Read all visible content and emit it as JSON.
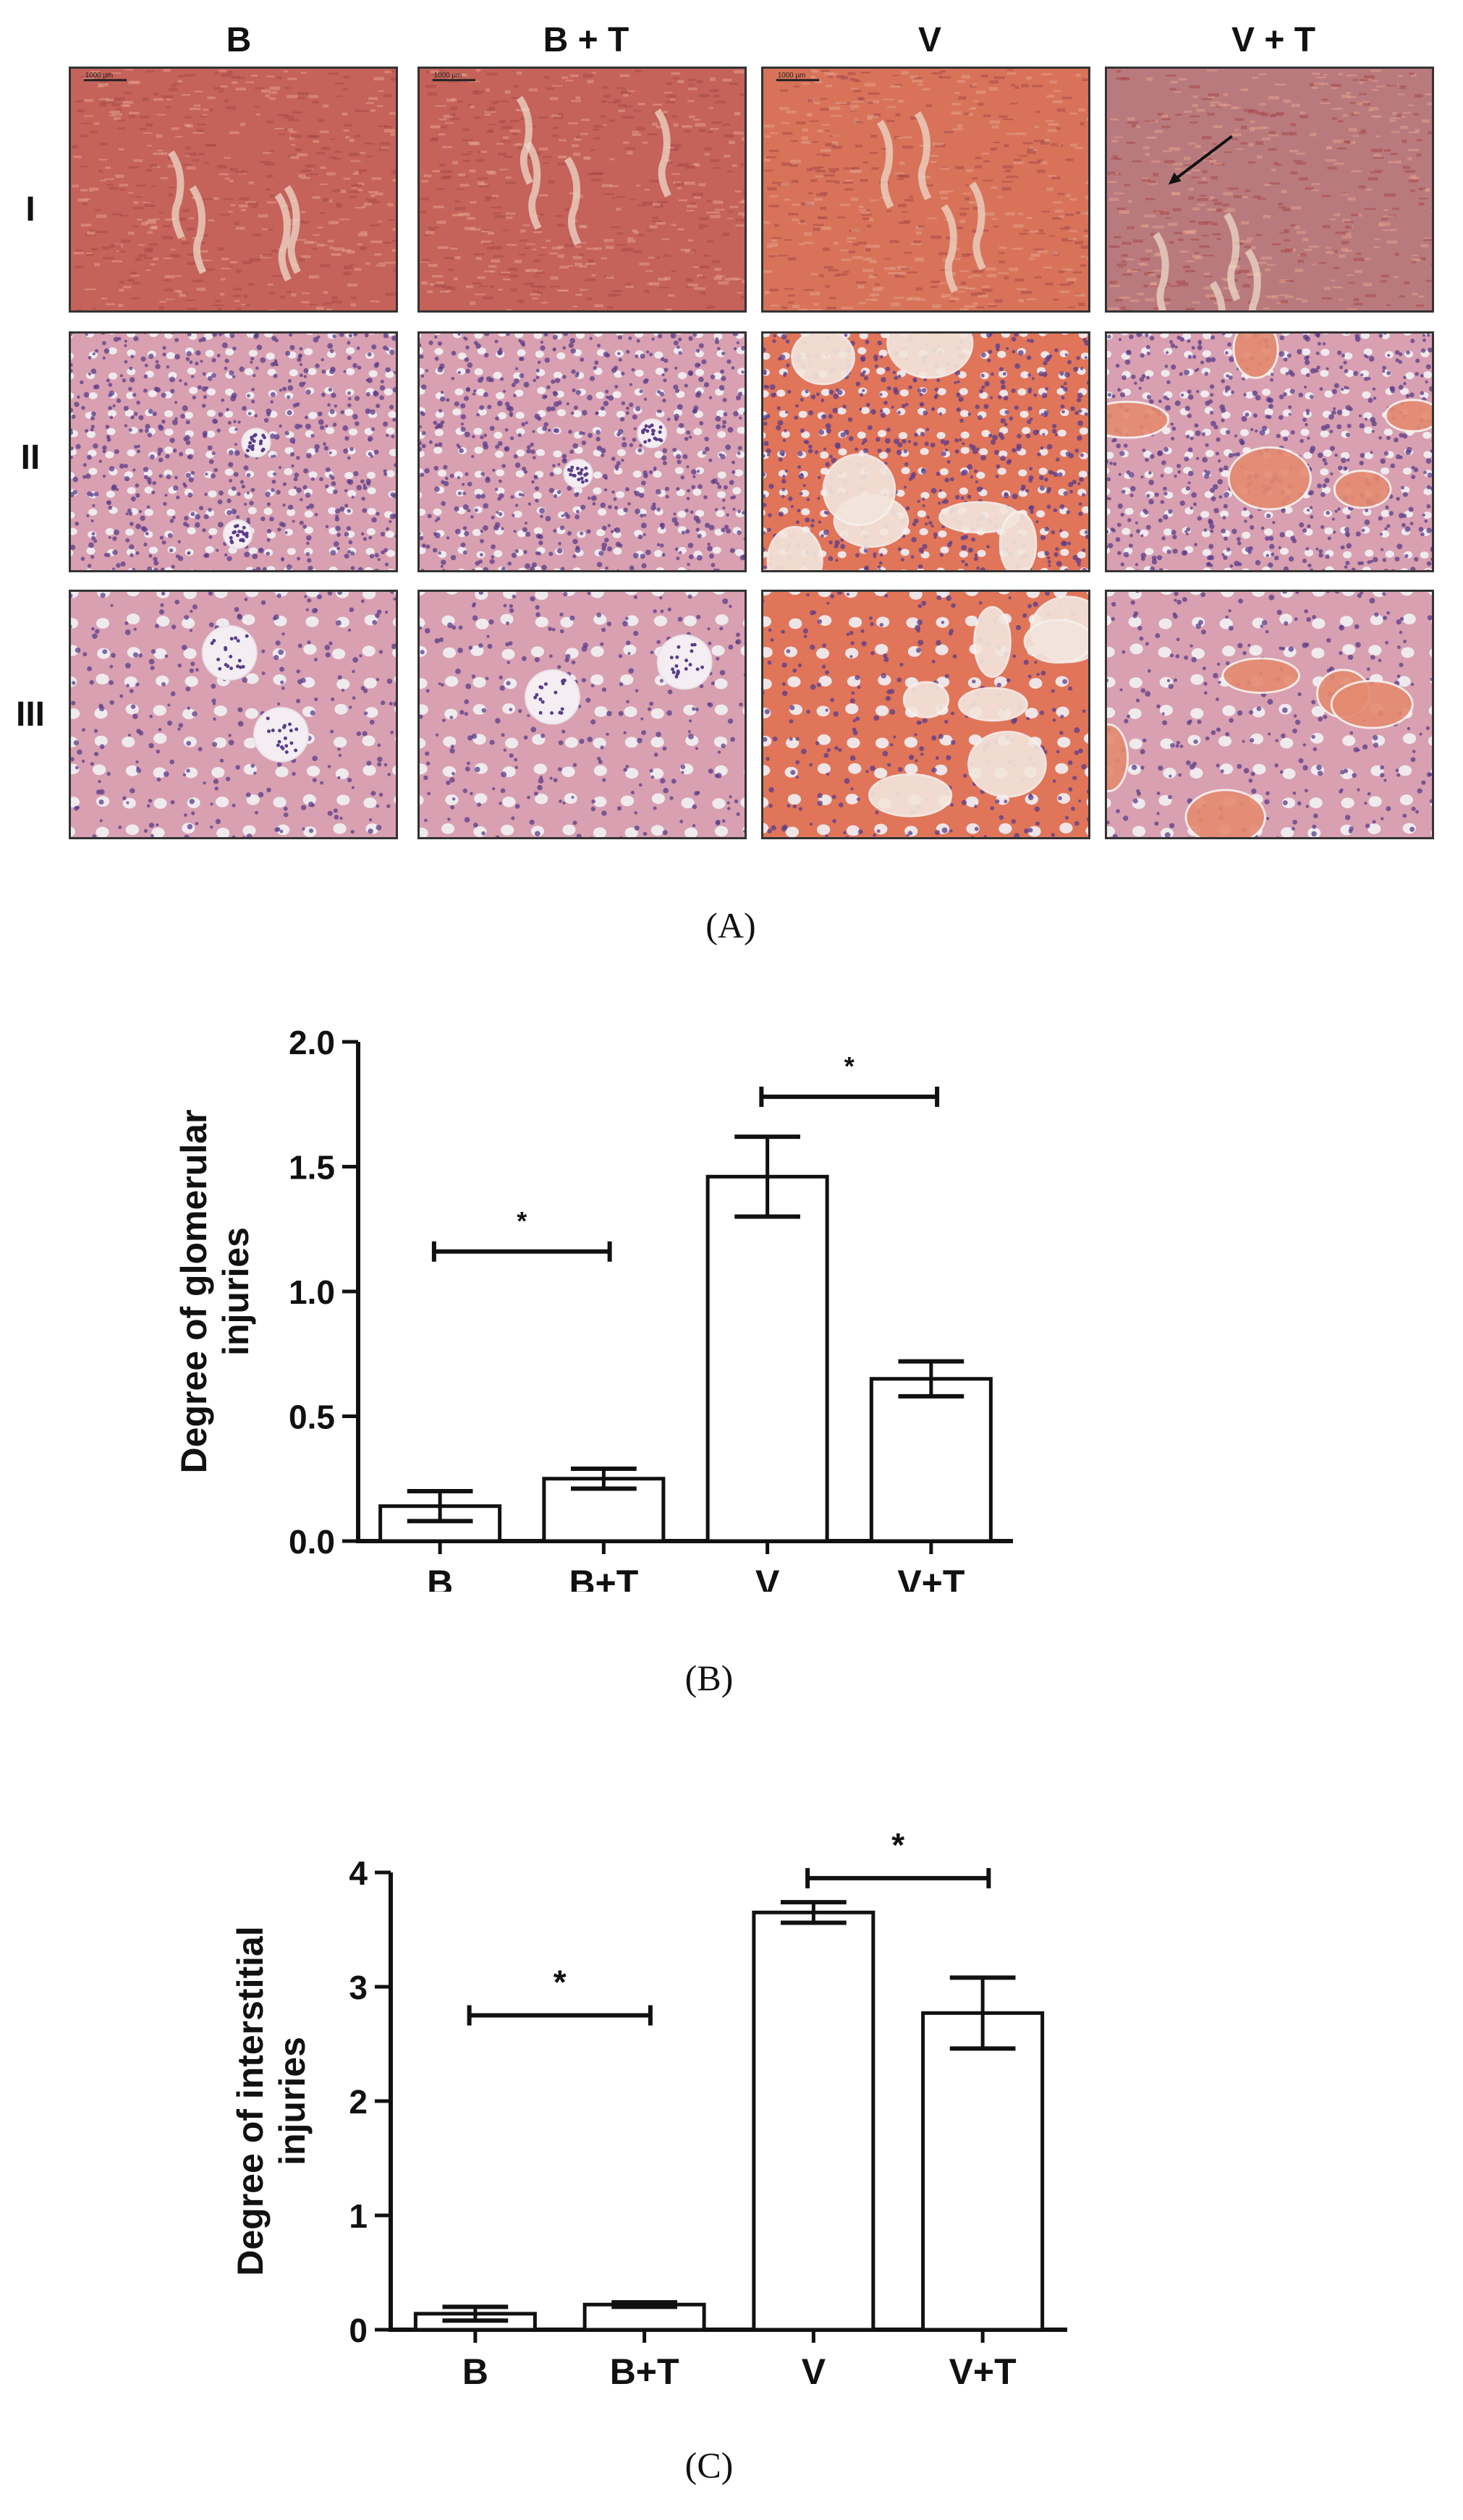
{
  "panel_a": {
    "columns": [
      "B",
      "B + T",
      "V",
      "V + T"
    ],
    "rows": [
      "I",
      "II",
      "III"
    ],
    "scale_bar": "1000 µm",
    "caption": "(A)"
  },
  "chart_data": [
    {
      "type": "bar",
      "panel": "B",
      "caption": "(B)",
      "categories": [
        "B",
        "B+T",
        "V",
        "V+T"
      ],
      "values": [
        0.14,
        0.25,
        1.46,
        0.65
      ],
      "errors": [
        0.06,
        0.04,
        0.16,
        0.07
      ],
      "ylabel": "Degree of glomerular injuries",
      "ylabel_lines": [
        "Degree of glomerular",
        "injuries"
      ],
      "ylim": [
        0,
        2.0
      ],
      "yticks": [
        "0.0",
        "0.5",
        "1.0",
        "1.5",
        "2.0"
      ],
      "significance": [
        {
          "from": 0,
          "to": 1,
          "y": 1.16,
          "label": "*"
        },
        {
          "from": 2,
          "to": 3,
          "y": 1.78,
          "label": "*"
        }
      ],
      "bar_fill": "#ffffff",
      "line_color": "#111111"
    },
    {
      "type": "bar",
      "panel": "C",
      "caption": "(C)",
      "categories": [
        "B",
        "B+T",
        "V",
        "V+T"
      ],
      "values": [
        0.14,
        0.22,
        3.65,
        2.77
      ],
      "errors": [
        0.06,
        0.02,
        0.09,
        0.31
      ],
      "ylabel": "Degree of interstitial injuries",
      "ylabel_lines": [
        "Degree of interstitial",
        "injuries"
      ],
      "ylim": [
        0,
        4
      ],
      "yticks": [
        "0",
        "1",
        "2",
        "3",
        "4"
      ],
      "significance": [
        {
          "from": 0,
          "to": 1,
          "y": 2.75,
          "label": "*"
        },
        {
          "from": 2,
          "to": 3,
          "y": 3.95,
          "label": "*"
        }
      ],
      "bar_fill": "#ffffff",
      "line_color": "#111111"
    }
  ],
  "colors": {
    "tissue_low_mag": "#c5625a",
    "tissue_he_pink": "#d8a0b0",
    "tissue_eosin": "#e0755a",
    "nuclei": "#5a3c8a",
    "lumen": "#f2f2f5"
  }
}
